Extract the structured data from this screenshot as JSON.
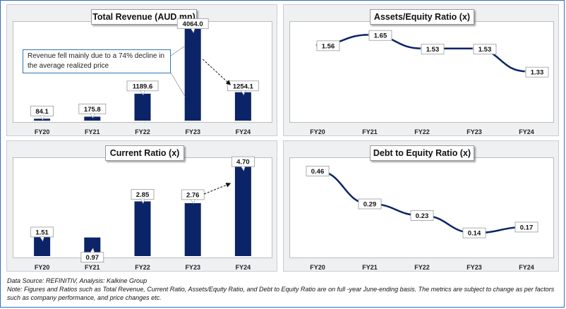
{
  "chart_data": [
    {
      "type": "bar",
      "title": "Total Revenue (AUD mn)",
      "categories": [
        "FY20",
        "FY21",
        "FY22",
        "FY23",
        "FY24"
      ],
      "values": [
        84.1,
        175.8,
        1189.6,
        4064.0,
        1254.1
      ],
      "labels": [
        "84.1",
        "175.8",
        "1189.6",
        "4064.0",
        "1254.1"
      ],
      "ylim": [
        0,
        4300
      ],
      "color": "#0b2467",
      "annotation": "Revenue fell mainly due to a 74% decline in the average realized price",
      "trend_arrow": {
        "from": "FY23",
        "to": "FY24"
      }
    },
    {
      "type": "line",
      "title": "Assets/Equity Ratio (x)",
      "categories": [
        "FY20",
        "FY21",
        "FY22",
        "FY23",
        "FY24"
      ],
      "values": [
        1.56,
        1.65,
        1.53,
        1.53,
        1.33
      ],
      "labels": [
        "1.56",
        "1.65",
        "1.53",
        "1.53",
        "1.33"
      ],
      "ylim": [
        0.9,
        1.75
      ],
      "color": "#0b2467",
      "marker_color": "#8aa9d6"
    },
    {
      "type": "bar",
      "title": "Current Ratio (x)",
      "categories": [
        "FY20",
        "FY21",
        "FY22",
        "FY23",
        "FY24"
      ],
      "values": [
        1.51,
        0.97,
        2.85,
        2.76,
        4.7
      ],
      "labels": [
        "1.51",
        "0.97",
        "2.85",
        "2.76",
        "4.70"
      ],
      "ylim": [
        0,
        5.0
      ],
      "color": "#0b2467",
      "trend_arrow": {
        "from": "FY23",
        "to": "FY24"
      }
    },
    {
      "type": "line",
      "title": "Debt to Equity Ratio (x)",
      "categories": [
        "FY20",
        "FY21",
        "FY22",
        "FY23",
        "FY24"
      ],
      "values": [
        0.46,
        0.29,
        0.23,
        0.14,
        0.17
      ],
      "labels": [
        "0.46",
        "0.29",
        "0.23",
        "0.14",
        "0.17"
      ],
      "ylim": [
        0.02,
        0.52
      ],
      "color": "#0b2467"
    }
  ],
  "footer": {
    "source": "Data Source: REFINITIV, Analysis: Kalkine Group",
    "note": "Note: Figures and Ratios such as Total Revenue, Current Ratio, Assets/Equity Ratio, and Debt to Equity Ratio are on full -year June-ending basis. The metrics are subject to change as per factors such as company performance, and price changes etc."
  }
}
